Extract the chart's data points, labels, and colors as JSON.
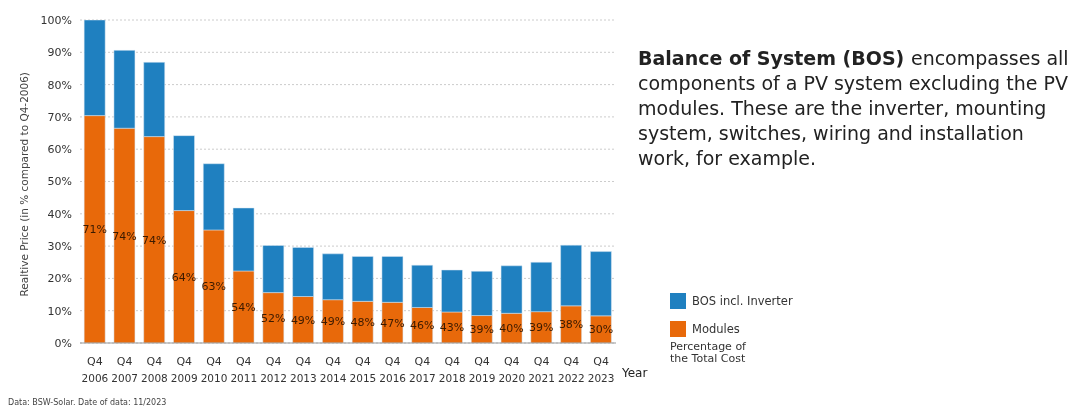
{
  "chart_data": {
    "type": "bar",
    "stacked": true,
    "title": "Balance of System (BOS)",
    "subtitle": "encompasses all components of a PV system excluding the PV modules. These are the inverter, mounting system, switches, wiring and installation work, for example.",
    "xlabel": "Year",
    "ylabel": "Realtive Price (in % compared to Q4-2006)",
    "categories": [
      "Q4 2006",
      "Q4 2007",
      "Q4 2008",
      "Q4 2009",
      "Q4 2010",
      "Q4 2011",
      "Q4 2012",
      "Q4 2013",
      "Q4 2014",
      "Q4 2015",
      "Q4 2016",
      "Q4 2017",
      "Q4 2018",
      "Q4 2019",
      "Q4 2020",
      "Q4 2021",
      "Q4 2022",
      "Q4 2023"
    ],
    "series": [
      {
        "name": "Modules",
        "color": "#e8690a",
        "values": [
          70.4,
          66.5,
          63.9,
          41.0,
          35.0,
          22.3,
          15.6,
          14.4,
          13.4,
          12.9,
          12.6,
          11.0,
          9.6,
          8.5,
          9.2,
          9.7,
          11.5,
          8.4
        ]
      },
      {
        "name": "BOS incl. Inverter",
        "color": "#1f80c0",
        "values": [
          29.6,
          24.1,
          23.0,
          23.2,
          20.5,
          19.5,
          14.6,
          15.2,
          14.2,
          13.9,
          14.2,
          13.1,
          13.0,
          13.7,
          14.7,
          15.3,
          18.8,
          19.9
        ]
      }
    ],
    "ylim": [
      0,
      100
    ],
    "yticks": [
      {
        "value": 0,
        "label": "0%"
      },
      {
        "value": 10,
        "label": "10%"
      },
      {
        "value": 20,
        "label": "20%"
      },
      {
        "value": 30,
        "label": "30%"
      },
      {
        "value": 40,
        "label": "40%"
      },
      {
        "value": 50,
        "label": "50%"
      },
      {
        "value": 60,
        "label": "60%"
      },
      {
        "value": 70,
        "label": "70%"
      },
      {
        "value": 80,
        "label": "80%"
      },
      {
        "value": 90,
        "label": "90%"
      },
      {
        "value": 100,
        "label": "100%"
      }
    ],
    "grid": "y",
    "legend": "right",
    "annotations": [
      "Percentage of the Total Cost",
      "Data: BSW-Solar. Date of data: 11/2023",
      "71%",
      "74%",
      "74%",
      "64%",
      "63%",
      "54%",
      "52%",
      "49%",
      "49%",
      "48%",
      "47%",
      "46%",
      "43%",
      "39%",
      "40%",
      "39%",
      "38%",
      "30%"
    ]
  }
}
